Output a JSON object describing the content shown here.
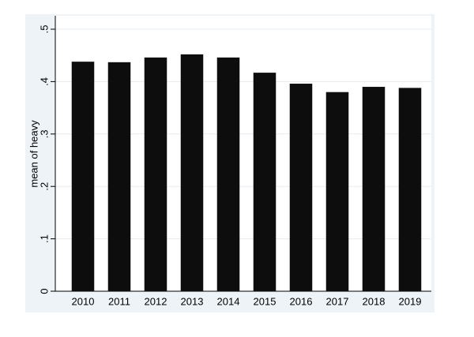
{
  "chart_data": {
    "type": "bar",
    "y_label": "mean of heavy",
    "categories": [
      "2010",
      "2011",
      "2012",
      "2013",
      "2014",
      "2015",
      "2016",
      "2017",
      "2018",
      "2019"
    ],
    "values": [
      0.438,
      0.437,
      0.446,
      0.452,
      0.446,
      0.417,
      0.396,
      0.38,
      0.39,
      0.388
    ],
    "color": "#0d0d0d",
    "ylim": [
      0,
      0.5
    ],
    "yticks": [
      0,
      {
        "value": 0.1,
        "label": ".1"
      },
      {
        "value": 0.2,
        "label": ".2"
      },
      {
        "value": 0.3,
        "label": ".3"
      },
      {
        "value": 0.4,
        "label": ".4"
      },
      {
        "value": 0.5,
        "label": ".5"
      }
    ],
    "grid": true
  }
}
